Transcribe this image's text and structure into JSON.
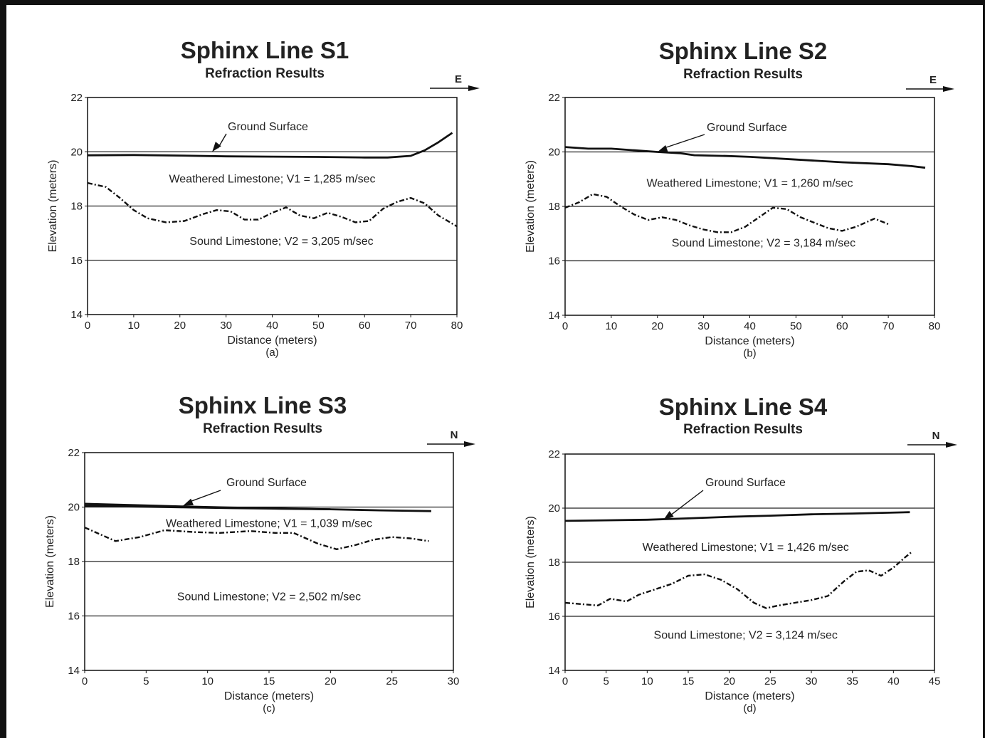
{
  "chart_data": [
    {
      "type": "line",
      "title": "Sphinx Line S1",
      "subtitle": "Refraction Results",
      "xlabel": "Distance (meters)",
      "ylabel": "Elevation (meters)",
      "panel_label": "(a)",
      "direction": "E",
      "xlim": [
        0,
        80
      ],
      "ylim": [
        14,
        22
      ],
      "x_ticks": [
        0,
        10,
        20,
        30,
        40,
        50,
        60,
        70,
        80
      ],
      "y_ticks": [
        14,
        16,
        18,
        20,
        22
      ],
      "grid_y": [
        16,
        18,
        20
      ],
      "annotations": {
        "ground": "Ground Surface",
        "weathered": "Weathered Limestone; V1 = 1,285 m/sec",
        "sound": "Sound Limestone; V2 = 3,205 m/sec"
      },
      "series": [
        {
          "style": "solid",
          "points": [
            [
              0,
              19.87
            ],
            [
              10,
              19.88
            ],
            [
              20,
              19.86
            ],
            [
              30,
              19.83
            ],
            [
              40,
              19.82
            ],
            [
              50,
              19.81
            ],
            [
              60,
              19.79
            ],
            [
              65,
              19.79
            ],
            [
              70,
              19.85
            ],
            [
              73,
              20.05
            ],
            [
              76,
              20.35
            ],
            [
              79,
              20.7
            ]
          ]
        },
        {
          "style": "dashdot",
          "points": [
            [
              0,
              18.85
            ],
            [
              4,
              18.7
            ],
            [
              7,
              18.3
            ],
            [
              10,
              17.85
            ],
            [
              13,
              17.55
            ],
            [
              17,
              17.4
            ],
            [
              21,
              17.45
            ],
            [
              25,
              17.7
            ],
            [
              28,
              17.85
            ],
            [
              31,
              17.8
            ],
            [
              34,
              17.5
            ],
            [
              37,
              17.5
            ],
            [
              40,
              17.75
            ],
            [
              43,
              17.95
            ],
            [
              46,
              17.65
            ],
            [
              49,
              17.55
            ],
            [
              52,
              17.75
            ],
            [
              55,
              17.6
            ],
            [
              58,
              17.4
            ],
            [
              61,
              17.45
            ],
            [
              64,
              17.9
            ],
            [
              67,
              18.15
            ],
            [
              70,
              18.3
            ],
            [
              73,
              18.1
            ],
            [
              76,
              17.65
            ],
            [
              80,
              17.25
            ]
          ]
        }
      ]
    },
    {
      "type": "line",
      "title": "Sphinx Line S2",
      "subtitle": "Refraction Results",
      "xlabel": "Distance (meters)",
      "ylabel": "Elevation (meters)",
      "panel_label": "(b)",
      "direction": "E",
      "xlim": [
        0,
        80
      ],
      "ylim": [
        14,
        22
      ],
      "x_ticks": [
        0,
        10,
        20,
        30,
        40,
        50,
        60,
        70,
        80
      ],
      "y_ticks": [
        14,
        16,
        18,
        20,
        22
      ],
      "grid_y": [
        16,
        18,
        20
      ],
      "annotations": {
        "ground": "Ground Surface",
        "weathered": "Weathered Limestone; V1 = 1,260 m/sec",
        "sound": "Sound Limestone; V2 = 3,184 m/sec"
      },
      "series": [
        {
          "style": "solid",
          "points": [
            [
              0,
              20.18
            ],
            [
              5,
              20.12
            ],
            [
              10,
              20.12
            ],
            [
              15,
              20.06
            ],
            [
              20,
              20.0
            ],
            [
              25,
              19.95
            ],
            [
              28,
              19.88
            ],
            [
              35,
              19.85
            ],
            [
              40,
              19.82
            ],
            [
              50,
              19.72
            ],
            [
              60,
              19.62
            ],
            [
              70,
              19.55
            ],
            [
              75,
              19.48
            ],
            [
              78,
              19.42
            ]
          ]
        },
        {
          "style": "dashdot",
          "points": [
            [
              0,
              17.95
            ],
            [
              3,
              18.15
            ],
            [
              6,
              18.45
            ],
            [
              9,
              18.35
            ],
            [
              12,
              18.0
            ],
            [
              15,
              17.7
            ],
            [
              18,
              17.5
            ],
            [
              21,
              17.6
            ],
            [
              24,
              17.5
            ],
            [
              27,
              17.3
            ],
            [
              30,
              17.15
            ],
            [
              33,
              17.05
            ],
            [
              36,
              17.05
            ],
            [
              39,
              17.25
            ],
            [
              42,
              17.6
            ],
            [
              45,
              17.95
            ],
            [
              48,
              17.9
            ],
            [
              51,
              17.6
            ],
            [
              54,
              17.4
            ],
            [
              57,
              17.2
            ],
            [
              60,
              17.1
            ],
            [
              63,
              17.25
            ],
            [
              67,
              17.55
            ],
            [
              70,
              17.35
            ]
          ]
        }
      ]
    },
    {
      "type": "line",
      "title": "Sphinx Line S3",
      "subtitle": "Refraction Results",
      "xlabel": "Distance (meters)",
      "ylabel": "Elevation (meters)",
      "panel_label": "(c)",
      "direction": "N",
      "xlim": [
        0,
        30
      ],
      "ylim": [
        14,
        22
      ],
      "x_ticks": [
        0,
        5,
        10,
        15,
        20,
        25,
        30
      ],
      "y_ticks": [
        14,
        16,
        18,
        20,
        22
      ],
      "grid_y": [
        16,
        18,
        20
      ],
      "annotations": {
        "ground": "Ground Surface",
        "weathered": "Weathered Limestone; V1 = 1,039 m/sec",
        "sound": "Sound Limestone; V2 = 2,502 m/sec"
      },
      "series": [
        {
          "style": "solid",
          "points": [
            [
              0,
              20.12
            ],
            [
              4,
              20.07
            ],
            [
              8,
              20.02
            ],
            [
              12,
              19.98
            ],
            [
              16,
              19.95
            ],
            [
              20,
              19.92
            ],
            [
              24,
              19.88
            ],
            [
              28.2,
              19.85
            ]
          ]
        },
        {
          "style": "solid",
          "points": [
            [
              0,
              20.05
            ],
            [
              4,
              20.02
            ],
            [
              8,
              19.99
            ],
            [
              12,
              19.96
            ],
            [
              16,
              19.94
            ],
            [
              20,
              19.92
            ]
          ]
        },
        {
          "style": "dashdot",
          "points": [
            [
              0,
              19.25
            ],
            [
              2.5,
              18.75
            ],
            [
              4.5,
              18.9
            ],
            [
              6.5,
              19.15
            ],
            [
              9,
              19.08
            ],
            [
              11,
              19.05
            ],
            [
              13.5,
              19.12
            ],
            [
              15.5,
              19.05
            ],
            [
              17,
              19.05
            ],
            [
              19,
              18.65
            ],
            [
              20.5,
              18.45
            ],
            [
              22,
              18.6
            ],
            [
              23.5,
              18.8
            ],
            [
              25,
              18.9
            ],
            [
              26.5,
              18.85
            ],
            [
              28,
              18.75
            ]
          ]
        }
      ]
    },
    {
      "type": "line",
      "title": "Sphinx Line S4",
      "subtitle": "Refraction Results",
      "xlabel": "Distance (meters)",
      "ylabel": "Elevation (meters)",
      "panel_label": "(d)",
      "direction": "N",
      "xlim": [
        0,
        45
      ],
      "ylim": [
        14,
        22
      ],
      "x_ticks": [
        0,
        5,
        10,
        15,
        20,
        25,
        30,
        35,
        40,
        45
      ],
      "y_ticks": [
        14,
        16,
        18,
        20,
        22
      ],
      "grid_y": [
        16,
        18,
        20
      ],
      "annotations": {
        "ground": "Ground Surface",
        "weathered": "Weathered Limestone; V1 = 1,426 m/sec",
        "sound": "Sound Limestone; V2 = 3,124 m/sec"
      },
      "series": [
        {
          "style": "solid",
          "points": [
            [
              0,
              19.53
            ],
            [
              5,
              19.55
            ],
            [
              10,
              19.57
            ],
            [
              15,
              19.62
            ],
            [
              20,
              19.68
            ],
            [
              25,
              19.72
            ],
            [
              30,
              19.77
            ],
            [
              35,
              19.8
            ],
            [
              42,
              19.85
            ]
          ]
        },
        {
          "style": "dashdot",
          "points": [
            [
              0,
              16.5
            ],
            [
              2,
              16.45
            ],
            [
              4,
              16.4
            ],
            [
              5.5,
              16.65
            ],
            [
              7.5,
              16.55
            ],
            [
              9,
              16.8
            ],
            [
              11,
              17.0
            ],
            [
              13,
              17.2
            ],
            [
              15,
              17.5
            ],
            [
              17,
              17.55
            ],
            [
              19,
              17.35
            ],
            [
              21,
              17.0
            ],
            [
              23,
              16.5
            ],
            [
              24.5,
              16.3
            ],
            [
              26,
              16.4
            ],
            [
              28,
              16.5
            ],
            [
              30,
              16.6
            ],
            [
              32,
              16.75
            ],
            [
              34,
              17.3
            ],
            [
              35.5,
              17.65
            ],
            [
              37,
              17.7
            ],
            [
              38.5,
              17.5
            ],
            [
              40,
              17.8
            ],
            [
              41.5,
              18.2
            ],
            [
              42.3,
              18.4
            ]
          ]
        }
      ]
    }
  ]
}
